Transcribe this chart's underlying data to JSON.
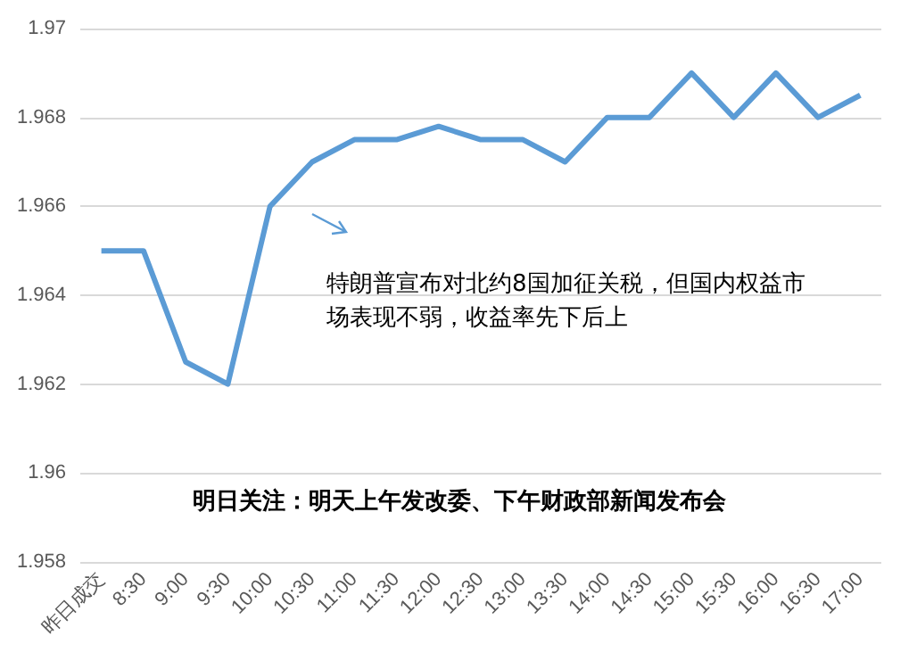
{
  "chart_data": {
    "type": "line",
    "categories": [
      "昨日成交",
      "8:30",
      "9:00",
      "9:30",
      "10:00",
      "10:30",
      "11:00",
      "11:30",
      "12:00",
      "12:30",
      "13:00",
      "13:30",
      "14:00",
      "14:30",
      "15:00",
      "15:30",
      "16:00",
      "16:30",
      "17:00"
    ],
    "series": [
      {
        "color": "#5b9bd5",
        "values": [
          1.965,
          1.965,
          1.9625,
          1.962,
          1.966,
          1.967,
          1.9675,
          1.9675,
          1.9678,
          1.9675,
          1.9675,
          1.967,
          1.968,
          1.968,
          1.969,
          1.968,
          1.969,
          1.968,
          1.9685
        ]
      }
    ],
    "ylim": [
      1.958,
      1.97
    ],
    "yticks": [
      1.958,
      1.96,
      1.962,
      1.964,
      1.966,
      1.968,
      1.97
    ],
    "grid": "y",
    "marker": "none",
    "line_style": "solid",
    "annotations": [
      "特朗普宣布对北约8国加征关税，但国内权益市场表现不弱，收益率先下后上",
      "明日关注：明天上午发改委、下午财政部新闻发布会"
    ]
  }
}
